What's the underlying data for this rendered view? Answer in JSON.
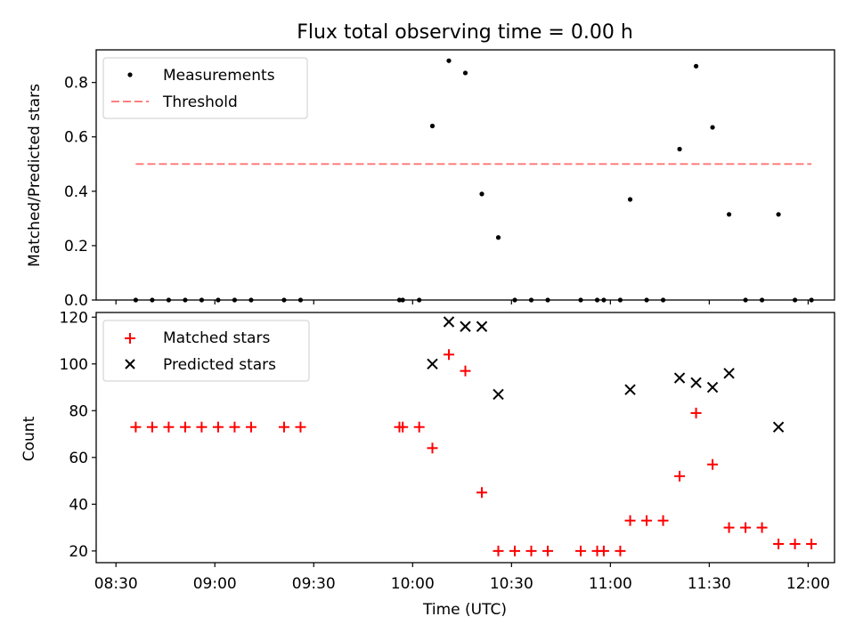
{
  "chart_data": {
    "title": "Flux total observing time = 0.00 h",
    "xlabel": "Time (UTC)",
    "x_ticks": [
      "08:30",
      "09:00",
      "09:30",
      "10:00",
      "10:30",
      "11:00",
      "11:30",
      "12:00"
    ],
    "panels": [
      {
        "type": "scatter",
        "ylabel": "Matched/Predicted stars",
        "ylim": [
          0,
          0.92
        ],
        "y_ticks": [
          "0.0",
          "0.2",
          "0.4",
          "0.6",
          "0.8"
        ],
        "legend_position": "upper-left",
        "series": [
          {
            "name": "Measurements",
            "marker": "dot",
            "color": "#000000",
            "points": [
              [
                "08:36",
                0
              ],
              [
                "08:41",
                0
              ],
              [
                "08:46",
                0
              ],
              [
                "08:51",
                0
              ],
              [
                "08:56",
                0
              ],
              [
                "09:01",
                0
              ],
              [
                "09:06",
                0
              ],
              [
                "09:11",
                0
              ],
              [
                "09:21",
                0
              ],
              [
                "09:26",
                0
              ],
              [
                "09:56",
                0
              ],
              [
                "09:57",
                0
              ],
              [
                "10:02",
                0
              ],
              [
                "10:06",
                0.64
              ],
              [
                "10:11",
                0.88
              ],
              [
                "10:16",
                0.835
              ],
              [
                "10:21",
                0.39
              ],
              [
                "10:26",
                0.23
              ],
              [
                "10:31",
                0
              ],
              [
                "10:36",
                0
              ],
              [
                "10:41",
                0
              ],
              [
                "10:51",
                0
              ],
              [
                "10:56",
                0
              ],
              [
                "10:58",
                0
              ],
              [
                "11:03",
                0
              ],
              [
                "11:06",
                0.37
              ],
              [
                "11:11",
                0
              ],
              [
                "11:16",
                0
              ],
              [
                "11:21",
                0.555
              ],
              [
                "11:26",
                0.86
              ],
              [
                "11:31",
                0.635
              ],
              [
                "11:36",
                0.315
              ],
              [
                "11:41",
                0
              ],
              [
                "11:46",
                0
              ],
              [
                "11:51",
                0.315
              ],
              [
                "11:56",
                0
              ],
              [
                "12:01",
                0
              ]
            ]
          },
          {
            "name": "Threshold",
            "marker": "dashed-line",
            "color": "#ff7f7f",
            "from": "08:36",
            "to": "12:01",
            "value": 0.5
          }
        ]
      },
      {
        "type": "scatter",
        "ylabel": "Count",
        "ylim": [
          15,
          122
        ],
        "y_ticks": [
          "20",
          "40",
          "60",
          "80",
          "100",
          "120"
        ],
        "legend_position": "upper-left",
        "series": [
          {
            "name": "Matched stars",
            "marker": "plus",
            "color": "#ff0000",
            "points": [
              [
                "08:36",
                73
              ],
              [
                "08:41",
                73
              ],
              [
                "08:46",
                73
              ],
              [
                "08:51",
                73
              ],
              [
                "08:56",
                73
              ],
              [
                "09:01",
                73
              ],
              [
                "09:06",
                73
              ],
              [
                "09:11",
                73
              ],
              [
                "09:21",
                73
              ],
              [
                "09:26",
                73
              ],
              [
                "09:56",
                73
              ],
              [
                "09:57",
                73
              ],
              [
                "10:02",
                73
              ],
              [
                "10:06",
                64
              ],
              [
                "10:11",
                104
              ],
              [
                "10:16",
                97
              ],
              [
                "10:21",
                45
              ],
              [
                "10:26",
                20
              ],
              [
                "10:31",
                20
              ],
              [
                "10:36",
                20
              ],
              [
                "10:41",
                20
              ],
              [
                "10:51",
                20
              ],
              [
                "10:56",
                20
              ],
              [
                "10:58",
                20
              ],
              [
                "11:03",
                20
              ],
              [
                "11:06",
                33
              ],
              [
                "11:11",
                33
              ],
              [
                "11:16",
                33
              ],
              [
                "11:21",
                52
              ],
              [
                "11:26",
                79
              ],
              [
                "11:31",
                57
              ],
              [
                "11:36",
                30
              ],
              [
                "11:41",
                30
              ],
              [
                "11:46",
                30
              ],
              [
                "11:51",
                23
              ],
              [
                "11:56",
                23
              ],
              [
                "12:01",
                23
              ]
            ]
          },
          {
            "name": "Predicted stars",
            "marker": "x",
            "color": "#000000",
            "points": [
              [
                "10:06",
                100
              ],
              [
                "10:11",
                118
              ],
              [
                "10:16",
                116
              ],
              [
                "10:21",
                116
              ],
              [
                "10:26",
                87
              ],
              [
                "11:06",
                89
              ],
              [
                "11:21",
                94
              ],
              [
                "11:26",
                92
              ],
              [
                "11:31",
                90
              ],
              [
                "11:36",
                96
              ],
              [
                "11:51",
                73
              ]
            ]
          }
        ]
      }
    ]
  }
}
